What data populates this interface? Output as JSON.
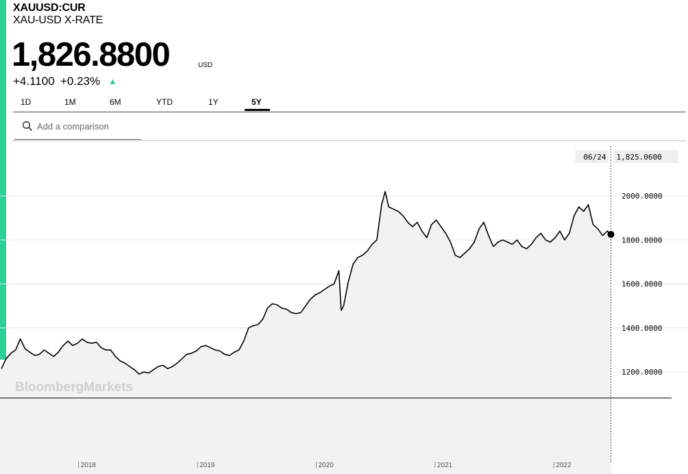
{
  "header": {
    "ticker": "XAUUSD:CUR",
    "name": "XAU-USD X-RATE",
    "price": "1,826.8800",
    "currency": "USD",
    "change": "+4.1100",
    "change_pct": "+0.23%",
    "change_arrow": "▲"
  },
  "tabs": [
    "1D",
    "1M",
    "6M",
    "YTD",
    "1Y",
    "5Y"
  ],
  "active_tab": "5Y",
  "compare": {
    "placeholder": "Add a comparison"
  },
  "watermark": "BloombergMarkets",
  "colors": {
    "accent": "#2bd296",
    "line": "#000000",
    "area": "#f2f2f2"
  },
  "chart_data": {
    "type": "area",
    "title": "",
    "xlabel": "",
    "ylabel": "",
    "x_range": [
      2017.35,
      2022.5
    ],
    "ylim": [
      1100,
      2100
    ],
    "y_ticks": [
      "1200.0000",
      "1400.0000",
      "1600.0000",
      "1800.0000",
      "2000.0000"
    ],
    "y_tick_values": [
      1200,
      1400,
      1600,
      1800,
      2000
    ],
    "x_ticks": [
      "2018",
      "2019",
      "2020",
      "2021",
      "2022"
    ],
    "x_tick_values": [
      2018,
      2019,
      2020,
      2021,
      2022
    ],
    "grid": true,
    "legend": "none",
    "crosshair": {
      "date_label": "06/24",
      "value_label": "1,825.0600",
      "x": 2022.48,
      "y": 1825
    },
    "series": [
      {
        "x": [
          2017.35,
          2017.39,
          2017.43,
          2017.47,
          2017.51,
          2017.55,
          2017.59,
          2017.63,
          2017.67,
          2017.71,
          2017.75,
          2017.79,
          2017.83,
          2017.87,
          2017.91,
          2017.95,
          2017.99,
          2018.03,
          2018.07,
          2018.11,
          2018.15,
          2018.19,
          2018.23,
          2018.27,
          2018.31,
          2018.35,
          2018.39,
          2018.43,
          2018.47,
          2018.51,
          2018.55,
          2018.59,
          2018.63,
          2018.67,
          2018.71,
          2018.75,
          2018.79,
          2018.83,
          2018.87,
          2018.91,
          2018.95,
          2018.99,
          2019.03,
          2019.07,
          2019.11,
          2019.15,
          2019.19,
          2019.23,
          2019.27,
          2019.31,
          2019.35,
          2019.39,
          2019.43,
          2019.47,
          2019.51,
          2019.55,
          2019.59,
          2019.63,
          2019.67,
          2019.71,
          2019.75,
          2019.79,
          2019.83,
          2019.87,
          2019.91,
          2019.95,
          2019.99,
          2020.03,
          2020.07,
          2020.11,
          2020.15,
          2020.19,
          2020.21,
          2020.23,
          2020.27,
          2020.31,
          2020.35,
          2020.39,
          2020.43,
          2020.47,
          2020.51,
          2020.55,
          2020.58,
          2020.61,
          2020.65,
          2020.69,
          2020.73,
          2020.77,
          2020.81,
          2020.85,
          2020.89,
          2020.93,
          2020.97,
          2021.01,
          2021.05,
          2021.09,
          2021.13,
          2021.17,
          2021.21,
          2021.25,
          2021.29,
          2021.33,
          2021.37,
          2021.41,
          2021.45,
          2021.49,
          2021.53,
          2021.57,
          2021.61,
          2021.65,
          2021.69,
          2021.73,
          2021.77,
          2021.81,
          2021.85,
          2021.89,
          2021.93,
          2021.97,
          2022.01,
          2022.05,
          2022.09,
          2022.13,
          2022.17,
          2022.21,
          2022.25,
          2022.29,
          2022.33,
          2022.37,
          2022.41,
          2022.45,
          2022.48
        ],
        "y": [
          1215,
          1260,
          1285,
          1300,
          1350,
          1305,
          1290,
          1275,
          1280,
          1300,
          1285,
          1270,
          1290,
          1320,
          1340,
          1320,
          1330,
          1350,
          1335,
          1330,
          1335,
          1310,
          1300,
          1300,
          1270,
          1250,
          1240,
          1225,
          1210,
          1190,
          1200,
          1195,
          1210,
          1225,
          1230,
          1215,
          1225,
          1240,
          1260,
          1280,
          1285,
          1295,
          1315,
          1320,
          1310,
          1300,
          1295,
          1280,
          1275,
          1290,
          1300,
          1340,
          1400,
          1410,
          1415,
          1440,
          1490,
          1510,
          1505,
          1490,
          1485,
          1470,
          1465,
          1470,
          1500,
          1530,
          1550,
          1560,
          1575,
          1590,
          1600,
          1660,
          1480,
          1500,
          1610,
          1690,
          1720,
          1730,
          1750,
          1780,
          1800,
          1960,
          2020,
          1950,
          1940,
          1930,
          1910,
          1880,
          1860,
          1880,
          1840,
          1810,
          1870,
          1890,
          1860,
          1830,
          1790,
          1730,
          1720,
          1740,
          1760,
          1790,
          1850,
          1880,
          1820,
          1770,
          1790,
          1800,
          1790,
          1780,
          1800,
          1770,
          1760,
          1780,
          1810,
          1830,
          1800,
          1790,
          1810,
          1840,
          1800,
          1830,
          1910,
          1950,
          1930,
          1960,
          1870,
          1850,
          1820,
          1840,
          1825
        ]
      }
    ]
  }
}
